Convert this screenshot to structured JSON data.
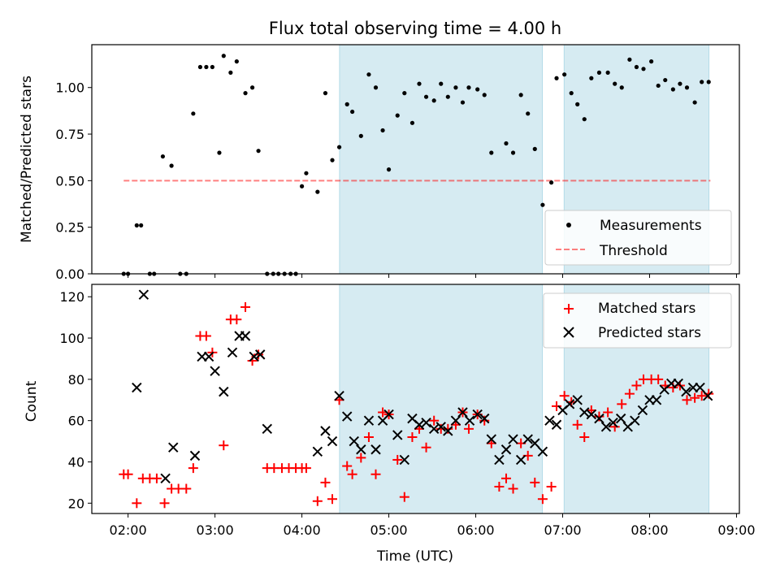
{
  "figure": {
    "title": "Flux total observing time = 4.00 h"
  },
  "colors": {
    "band": "#add8e6",
    "threshold": "#ff0000",
    "matched": "#ff0000",
    "predicted": "#000000",
    "measurement": "#000000"
  },
  "chart_data": [
    {
      "type": "scatter",
      "ylabel": "Matched/Predicted stars",
      "xlim": [
        1.583,
        9.033
      ],
      "ylim": [
        0,
        1.23
      ],
      "yticks": [
        0,
        0.25,
        0.5,
        0.75,
        1.0
      ],
      "ytick_labels": [
        "0.00",
        "0.25",
        "0.50",
        "0.75",
        "1.00"
      ],
      "grid": false,
      "legend_position": "lower-right",
      "shaded_intervals": [
        [
          4.433,
          6.767
        ],
        [
          7.017,
          8.683
        ]
      ],
      "threshold": {
        "name": "Threshold",
        "value": 0.5,
        "x_range": [
          1.95,
          8.7
        ],
        "style": "dashed"
      },
      "series": [
        {
          "name": "Measurements",
          "marker": "dot",
          "x": [
            1.95,
            2.0,
            2.1,
            2.15,
            2.25,
            2.3,
            2.4,
            2.5,
            2.6,
            2.67,
            2.75,
            2.83,
            2.9,
            2.97,
            3.05,
            3.1,
            3.18,
            3.25,
            3.35,
            3.43,
            3.5,
            3.6,
            3.67,
            3.73,
            3.8,
            3.87,
            3.93,
            4.0,
            4.05,
            4.18,
            4.27,
            4.35,
            4.43,
            4.52,
            4.58,
            4.68,
            4.77,
            4.85,
            4.93,
            5.0,
            5.1,
            5.18,
            5.27,
            5.35,
            5.43,
            5.52,
            5.6,
            5.68,
            5.77,
            5.85,
            5.92,
            6.02,
            6.1,
            6.18,
            6.35,
            6.43,
            6.52,
            6.6,
            6.68,
            6.77,
            6.87,
            6.93,
            7.02,
            7.1,
            7.17,
            7.25,
            7.33,
            7.42,
            7.52,
            7.6,
            7.68,
            7.77,
            7.85,
            7.93,
            8.02,
            8.1,
            8.18,
            8.27,
            8.35,
            8.43,
            8.52,
            8.6,
            8.68
          ],
          "y": [
            0.0,
            0.0,
            0.26,
            0.26,
            0.0,
            0.0,
            0.63,
            0.58,
            0.0,
            0.0,
            0.86,
            1.11,
            1.11,
            1.11,
            0.65,
            1.17,
            1.08,
            1.14,
            0.97,
            1.0,
            0.66,
            0.0,
            0.0,
            0.0,
            0.0,
            0.0,
            0.0,
            0.47,
            0.54,
            0.44,
            0.97,
            0.61,
            0.68,
            0.91,
            0.87,
            0.74,
            1.07,
            1.0,
            0.77,
            0.56,
            0.85,
            0.97,
            0.81,
            1.02,
            0.95,
            0.93,
            1.02,
            0.95,
            1.0,
            0.92,
            1.0,
            0.99,
            0.96,
            0.65,
            0.7,
            0.65,
            0.96,
            0.86,
            0.67,
            0.37,
            0.49,
            1.05,
            1.07,
            0.97,
            0.91,
            0.83,
            1.05,
            1.08,
            1.08,
            1.02,
            1.0,
            1.15,
            1.11,
            1.1,
            1.14,
            1.01,
            1.04,
            0.99,
            1.02,
            1.0,
            0.92,
            1.03,
            1.03
          ]
        }
      ]
    },
    {
      "type": "scatter",
      "xlabel": "Time (UTC)",
      "ylabel": "Count",
      "xlim": [
        1.583,
        9.033
      ],
      "ylim": [
        15,
        126
      ],
      "yticks": [
        20,
        40,
        60,
        80,
        100,
        120
      ],
      "xticks": [
        2,
        3,
        4,
        5,
        6,
        7,
        8,
        9
      ],
      "xtick_labels": [
        "02:00",
        "03:00",
        "04:00",
        "05:00",
        "06:00",
        "07:00",
        "08:00",
        "09:00"
      ],
      "grid": false,
      "legend_position": "upper-right",
      "shaded_intervals": [
        [
          4.433,
          6.767
        ],
        [
          7.017,
          8.683
        ]
      ],
      "series": [
        {
          "name": "Matched stars",
          "marker": "plus",
          "x": [
            1.95,
            2.0,
            2.1,
            2.17,
            2.25,
            2.33,
            2.42,
            2.5,
            2.58,
            2.67,
            2.75,
            2.83,
            2.9,
            2.97,
            3.1,
            3.18,
            3.25,
            3.35,
            3.43,
            3.5,
            3.6,
            3.68,
            3.77,
            3.85,
            3.93,
            4.0,
            4.05,
            4.18,
            4.27,
            4.35,
            4.43,
            4.52,
            4.58,
            4.68,
            4.77,
            4.85,
            4.93,
            5.0,
            5.1,
            5.18,
            5.27,
            5.35,
            5.43,
            5.52,
            5.6,
            5.68,
            5.77,
            5.85,
            5.92,
            6.02,
            6.1,
            6.18,
            6.27,
            6.35,
            6.43,
            6.52,
            6.6,
            6.68,
            6.77,
            6.87,
            6.93,
            7.02,
            7.1,
            7.17,
            7.25,
            7.33,
            7.42,
            7.52,
            7.6,
            7.68,
            7.77,
            7.85,
            7.93,
            8.02,
            8.1,
            8.18,
            8.27,
            8.35,
            8.43,
            8.52,
            8.6,
            8.68
          ],
          "y": [
            34,
            34,
            20,
            32,
            32,
            32,
            20,
            27,
            27,
            27,
            37,
            101,
            101,
            93,
            48,
            109,
            109,
            115,
            89,
            92,
            37,
            37,
            37,
            37,
            37,
            37,
            37,
            21,
            30,
            22,
            70,
            38,
            34,
            42,
            52,
            34,
            64,
            63,
            41,
            23,
            52,
            56,
            47,
            60,
            56,
            56,
            58,
            64,
            56,
            63,
            60,
            49,
            28,
            32,
            27,
            49,
            43,
            30,
            22,
            28,
            67,
            72,
            69,
            58,
            52,
            65,
            62,
            64,
            57,
            68,
            73,
            77,
            80,
            80,
            80,
            77,
            76,
            77,
            70,
            71,
            72,
            73
          ]
        },
        {
          "name": "Predicted stars",
          "marker": "x",
          "x": [
            2.1,
            2.18,
            2.43,
            2.52,
            2.77,
            2.85,
            2.93,
            3.0,
            3.1,
            3.2,
            3.28,
            3.35,
            3.45,
            3.52,
            3.6,
            4.18,
            4.27,
            4.35,
            4.43,
            4.52,
            4.6,
            4.68,
            4.77,
            4.85,
            4.93,
            5.0,
            5.1,
            5.18,
            5.27,
            5.35,
            5.43,
            5.52,
            5.6,
            5.68,
            5.77,
            5.85,
            5.93,
            6.02,
            6.1,
            6.18,
            6.27,
            6.35,
            6.43,
            6.52,
            6.6,
            6.68,
            6.77,
            6.85,
            6.93,
            7.0,
            7.08,
            7.17,
            7.25,
            7.33,
            7.42,
            7.5,
            7.58,
            7.67,
            7.75,
            7.83,
            7.92,
            8.0,
            8.08,
            8.17,
            8.25,
            8.33,
            8.42,
            8.5,
            8.58,
            8.67
          ],
          "y": [
            76,
            121,
            32,
            47,
            43,
            91,
            91,
            84,
            74,
            93,
            101,
            101,
            91,
            92,
            56,
            45,
            55,
            50,
            72,
            62,
            50,
            46,
            60,
            46,
            60,
            63,
            53,
            41,
            61,
            58,
            59,
            56,
            57,
            55,
            60,
            64,
            60,
            63,
            61,
            51,
            41,
            46,
            51,
            41,
            51,
            49,
            45,
            60,
            58,
            65,
            68,
            70,
            64,
            63,
            61,
            57,
            59,
            61,
            57,
            60,
            65,
            70,
            70,
            75,
            78,
            78,
            74,
            76,
            76,
            72
          ]
        }
      ]
    }
  ]
}
